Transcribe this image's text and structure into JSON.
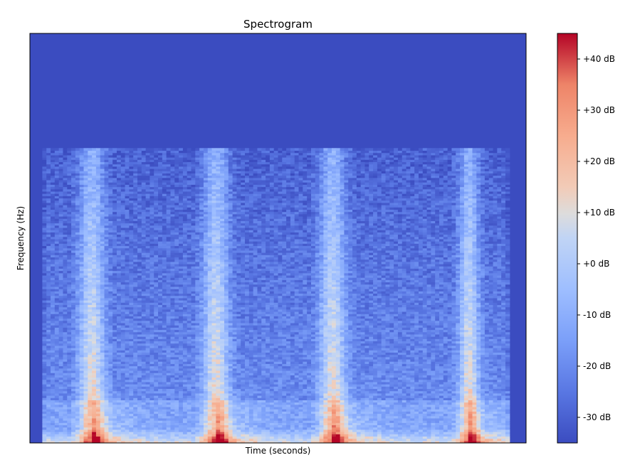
{
  "chart_data": {
    "type": "heatmap",
    "title": "Spectrogram",
    "xlabel": "Time (seconds)",
    "ylabel": "Frequency (Hz)",
    "x_ticks": [],
    "y_ticks": [],
    "colormap": "coolwarm",
    "colorbar": {
      "min": -35,
      "max": 45,
      "unit": "dB",
      "ticks": [
        {
          "value": 40,
          "label": "+40 dB"
        },
        {
          "value": 30,
          "label": "+30 dB"
        },
        {
          "value": 20,
          "label": "+20 dB"
        },
        {
          "value": 10,
          "label": "+10 dB"
        },
        {
          "value": 0,
          "label": "+0 dB"
        },
        {
          "value": -10,
          "label": "-10 dB"
        },
        {
          "value": -20,
          "label": "-20 dB"
        },
        {
          "value": -30,
          "label": "-30 dB"
        }
      ]
    },
    "background_db": -35,
    "active_frequency_fraction": 0.72,
    "sound_duration_fraction": 0.965,
    "bursts_time_fraction": [
      0.125,
      0.375,
      0.61,
      0.885
    ],
    "grid": false
  }
}
